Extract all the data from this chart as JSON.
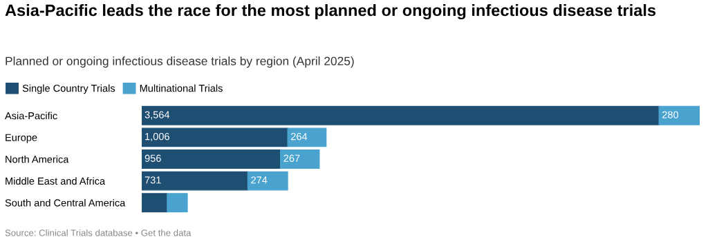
{
  "chart_data": {
    "type": "bar",
    "orientation": "horizontal",
    "stacked": true,
    "title": "Asia-Pacific leads the race for the most planned or ongoing infectious disease trials",
    "subtitle": "Planned or ongoing infectious disease trials by region (April 2025)",
    "categories": [
      "Asia-Pacific",
      "Europe",
      "North America",
      "Middle East and Africa",
      "South and Central America"
    ],
    "series": [
      {
        "name": "Single Country Trials",
        "color": "#1f4e73",
        "values": [
          3564,
          1006,
          956,
          731,
          176
        ],
        "value_labels": [
          "3,564",
          "1,006",
          "956",
          "731",
          null
        ]
      },
      {
        "name": "Multinational Trials",
        "color": "#4aa3cf",
        "values": [
          280,
          264,
          267,
          274,
          138
        ],
        "value_labels": [
          "280",
          "264",
          "267",
          "274",
          null
        ]
      }
    ],
    "legend": "top left",
    "grid": false,
    "annotations": [
      "Source: Clinical Trials database • Get the data"
    ]
  }
}
